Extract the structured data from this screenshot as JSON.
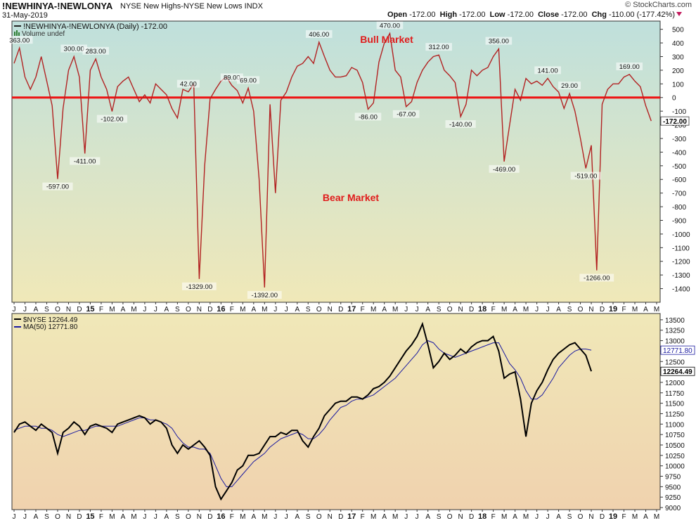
{
  "header": {
    "symbol": "!NEWHINYA-!NEWLONYA",
    "description": "NYSE New Highs-NYSE New Lows  INDX",
    "date": "31-May-2019",
    "brand": "© StockCharts.com",
    "open_label": "Open",
    "open": "-172.00",
    "high_label": "High",
    "high": "-172.00",
    "low_label": "Low",
    "low": "-172.00",
    "close_label": "Close",
    "close": "-172.00",
    "chg_label": "Chg",
    "chg": "-110.00 (-177.42%)"
  },
  "colors": {
    "hilo_line": "#b22222",
    "zero_line": "#ee1111",
    "nyse_line": "#000000",
    "ma_line": "#1a1aa0",
    "annotation": "#e01b1b",
    "bg_top": "#bfe0dc",
    "bg_mid": "#f0e8b8",
    "bg_bottom": "#f0d2ae"
  },
  "top_panel": {
    "legend_series": "!NEWHINYA-!NEWLONYA (Daily) -172.00",
    "legend_volume": "Volume undef",
    "bull_label": "Bull Market",
    "bear_label": "Bear Market",
    "current_value_label": "-172.00"
  },
  "bottom_panel": {
    "legend_series": "$NYSE 12264.49",
    "legend_ma": "MA(50) 12771.80",
    "ma_value_label": "12771.80",
    "close_value_label": "12264.49"
  },
  "x_axis_labels": [
    "J",
    "J",
    "A",
    "S",
    "O",
    "N",
    "D",
    "15",
    "F",
    "M",
    "A",
    "M",
    "J",
    "J",
    "A",
    "S",
    "O",
    "N",
    "D",
    "16",
    "F",
    "M",
    "A",
    "M",
    "J",
    "J",
    "A",
    "S",
    "O",
    "N",
    "D",
    "17",
    "F",
    "M",
    "A",
    "M",
    "J",
    "J",
    "A",
    "S",
    "O",
    "N",
    "D",
    "18",
    "F",
    "M",
    "A",
    "M",
    "J",
    "J",
    "A",
    "S",
    "O",
    "N",
    "D",
    "19",
    "F",
    "M",
    "A",
    "M"
  ],
  "chart_data": [
    {
      "type": "line",
      "title": "!NEWHINYA-!NEWLONYA (Daily)",
      "x_range": [
        "2014-06",
        "2019-05-31"
      ],
      "ylim": [
        -1500,
        560
      ],
      "y_ticks": [
        500,
        400,
        300,
        200,
        100,
        0,
        -100,
        -200,
        -300,
        -400,
        -500,
        -600,
        -700,
        -800,
        -900,
        -1000,
        -1100,
        -1200,
        -1300,
        -1400
      ],
      "reference_line": 0,
      "grid": false,
      "x_step_months": 0.5,
      "values": [
        250,
        363,
        150,
        60,
        150,
        300,
        120,
        -60,
        -597,
        -80,
        200,
        300,
        150,
        -411,
        200,
        283,
        150,
        60,
        -102,
        80,
        120,
        150,
        60,
        -30,
        20,
        -40,
        100,
        60,
        20,
        -80,
        -150,
        60,
        42,
        100,
        -1329,
        -500,
        -10,
        60,
        120,
        150,
        89,
        50,
        -40,
        69,
        -100,
        -600,
        -1392,
        -50,
        -700,
        -20,
        40,
        150,
        230,
        250,
        300,
        250,
        406,
        300,
        200,
        150,
        150,
        160,
        220,
        200,
        110,
        -86,
        -40,
        260,
        400,
        470,
        200,
        150,
        -67,
        -30,
        110,
        200,
        260,
        300,
        312,
        200,
        160,
        110,
        -140,
        -50,
        200,
        160,
        200,
        220,
        300,
        356,
        -469,
        -200,
        60,
        -20,
        140,
        100,
        120,
        90,
        141,
        80,
        40,
        -80,
        29,
        -100,
        -300,
        -519,
        -350,
        -1266,
        -50,
        60,
        100,
        100,
        150,
        169,
        120,
        80,
        -60,
        -172
      ],
      "annotations": [
        {
          "value": 363,
          "label": "363.00"
        },
        {
          "value": -597,
          "label": "-597.00"
        },
        {
          "value": 300,
          "label": "300.00"
        },
        {
          "value": -411,
          "label": "-411.00"
        },
        {
          "value": 283,
          "label": "283.00"
        },
        {
          "value": -102,
          "label": "-102.00"
        },
        {
          "value": 42,
          "label": "42.00"
        },
        {
          "value": -1329,
          "label": "-1329.00"
        },
        {
          "value": 89,
          "label": "89.00"
        },
        {
          "value": 69,
          "label": "69.00"
        },
        {
          "value": -1392,
          "label": "-1392.00"
        },
        {
          "value": 406,
          "label": "406.00"
        },
        {
          "value": -86,
          "label": "-86.00"
        },
        {
          "value": 470,
          "label": "470.00"
        },
        {
          "value": -67,
          "label": "-67.00"
        },
        {
          "value": 312,
          "label": "312.00"
        },
        {
          "value": -140,
          "label": "-140.00"
        },
        {
          "value": 356,
          "label": "356.00"
        },
        {
          "value": -469,
          "label": "-469.00"
        },
        {
          "value": 141,
          "label": "141.00"
        },
        {
          "value": 29,
          "label": "29.00"
        },
        {
          "value": -519,
          "label": "-519.00"
        },
        {
          "value": -1266,
          "label": "-1266.00"
        },
        {
          "value": 169,
          "label": "169.00"
        }
      ]
    },
    {
      "type": "line",
      "title": "$NYSE",
      "x_range": [
        "2014-06",
        "2019-05-31"
      ],
      "ylim": [
        8950,
        13650
      ],
      "y_ticks": [
        13500,
        13250,
        13000,
        12750,
        12500,
        12250,
        12000,
        11750,
        11500,
        11250,
        11000,
        10750,
        10500,
        10250,
        10000,
        9750,
        9500,
        9250,
        9000
      ],
      "grid": false,
      "x_step_months": 0.5,
      "series": [
        {
          "name": "$NYSE",
          "values": [
            10800,
            11000,
            11050,
            10950,
            10850,
            11000,
            10900,
            10800,
            10300,
            10800,
            10900,
            11050,
            10950,
            10750,
            10950,
            11000,
            10950,
            10900,
            10800,
            11000,
            11050,
            11100,
            11150,
            11200,
            11150,
            11000,
            11100,
            11050,
            10900,
            10500,
            10300,
            10500,
            10400,
            10500,
            10600,
            10450,
            10250,
            9500,
            9200,
            9400,
            9600,
            9900,
            10000,
            10250,
            10250,
            10300,
            10500,
            10700,
            10700,
            10800,
            10750,
            10850,
            10850,
            10600,
            10450,
            10700,
            10900,
            11200,
            11350,
            11500,
            11550,
            11550,
            11650,
            11650,
            11600,
            11700,
            11850,
            11900,
            12000,
            12150,
            12350,
            12550,
            12750,
            12900,
            13100,
            13400,
            12900,
            12350,
            12500,
            12700,
            12550,
            12650,
            12800,
            12700,
            12850,
            12950,
            13000,
            13000,
            13100,
            12750,
            12100,
            12200,
            12250,
            11600,
            10700,
            11500,
            11800,
            12000,
            12300,
            12550,
            12700,
            12800,
            12900,
            12950,
            12800,
            12650,
            12264.49
          ]
        },
        {
          "name": "MA(50)",
          "values": [
            10850,
            10900,
            10950,
            10950,
            10950,
            10900,
            10900,
            10850,
            10750,
            10700,
            10750,
            10800,
            10850,
            10850,
            10900,
            10950,
            10950,
            10950,
            10950,
            10950,
            11000,
            11050,
            11100,
            11150,
            11150,
            11100,
            11100,
            11050,
            11000,
            10900,
            10700,
            10550,
            10450,
            10450,
            10400,
            10400,
            10300,
            10000,
            9700,
            9500,
            9500,
            9650,
            9800,
            9950,
            10100,
            10200,
            10300,
            10450,
            10550,
            10650,
            10700,
            10750,
            10800,
            10750,
            10650,
            10650,
            10750,
            10900,
            11100,
            11250,
            11400,
            11450,
            11550,
            11600,
            11600,
            11650,
            11700,
            11800,
            11900,
            12000,
            12100,
            12250,
            12400,
            12550,
            12700,
            12900,
            13000,
            12950,
            12800,
            12700,
            12650,
            12600,
            12650,
            12700,
            12750,
            12800,
            12850,
            12900,
            12950,
            12950,
            12700,
            12450,
            12300,
            12100,
            11800,
            11600,
            11600,
            11700,
            11900,
            12100,
            12350,
            12500,
            12650,
            12750,
            12800,
            12800,
            12771.8
          ]
        }
      ]
    }
  ]
}
